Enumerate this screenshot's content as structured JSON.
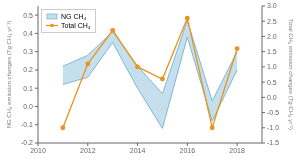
{
  "chart_data": {
    "type": "line",
    "x": [
      2011,
      2012,
      2013,
      2014,
      2015,
      2016,
      2017,
      2018
    ],
    "xlim": [
      2010,
      2019
    ],
    "xticks": [
      2010,
      2012,
      2014,
      2016,
      2018
    ],
    "ylim": [
      -0.2,
      0.55
    ],
    "yticks": [
      -0.2,
      -0.1,
      {
        "value": 0,
        "label": "0.0"
      },
      0.1,
      0.2,
      0.3,
      0.4,
      0.5
    ],
    "y2lim": [
      -1.5,
      3.0
    ],
    "y2ticks": [
      -1.5,
      {
        "value": -1,
        "label": "-1.0"
      },
      -0.5,
      {
        "value": 0,
        "label": "0.0"
      },
      0.5,
      {
        "value": 1,
        "label": "1.0"
      },
      1.5,
      {
        "value": 2,
        "label": "2.0"
      },
      2.5,
      {
        "value": 3,
        "label": "3.0"
      }
    ],
    "ylabel": "NG CH₄ emission changes (Tg CH₄ yr⁻¹)",
    "y2label": "Total CH₄ emission changes (Tg CH₄ yr⁻¹)",
    "legend": "upper left",
    "series": [
      {
        "name": "NG CH₄",
        "type": "range",
        "lower": [
          0.12,
          0.16,
          0.35,
          0.1,
          -0.12,
          0.38,
          -0.08,
          0.2
        ],
        "upper": [
          0.22,
          0.28,
          0.41,
          0.22,
          0.07,
          0.47,
          0.03,
          0.3
        ],
        "color": "#7fb8d4"
      },
      {
        "name": "Total CH₄",
        "type": "line",
        "axis": "y2",
        "values": [
          -1.0,
          1.1,
          2.2,
          1.0,
          0.6,
          2.6,
          -1.0,
          1.6
        ],
        "color": "#e8941a",
        "marker": "o"
      }
    ]
  }
}
